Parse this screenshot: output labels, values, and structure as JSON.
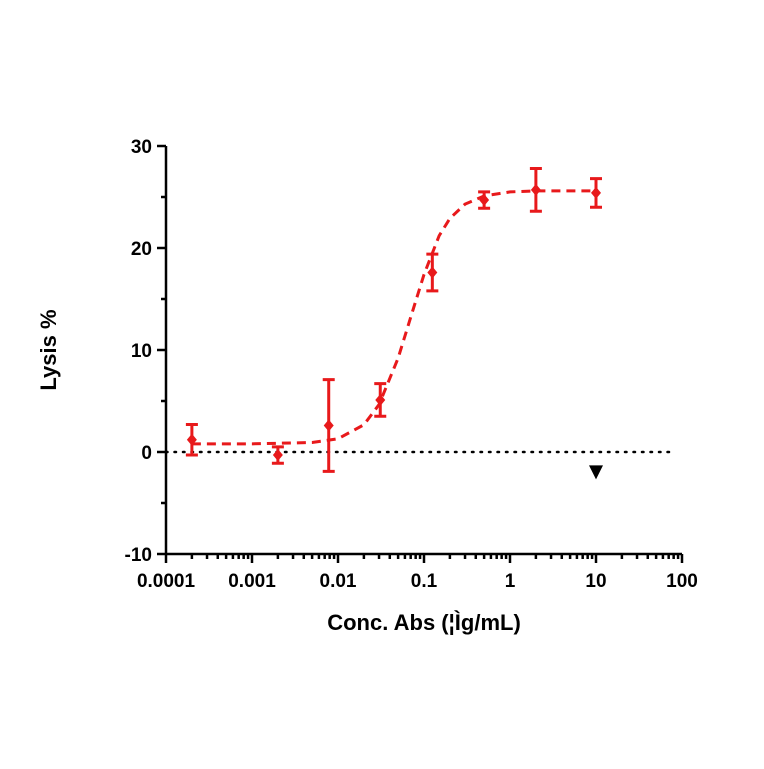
{
  "chart_data": {
    "type": "scatter",
    "xlabel": "Conc. Abs (¦Ìg/mL)",
    "ylabel": "Lysis %",
    "xscale": "log",
    "xlim": [
      0.0001,
      100
    ],
    "xticks": [
      0.0001,
      0.001,
      0.01,
      0.1,
      1,
      10,
      100
    ],
    "ylim": [
      -10,
      30
    ],
    "yticks": [
      -10,
      0,
      10,
      20,
      30
    ],
    "minor_ticks": true,
    "color": "#e8191b",
    "x": [
      0.0002,
      0.002,
      0.0078,
      0.031,
      0.125,
      0.5,
      2,
      10
    ],
    "values": [
      1.2,
      -0.3,
      2.6,
      5.1,
      17.6,
      24.7,
      25.7,
      25.4
    ],
    "errors": [
      1.5,
      0.8,
      4.5,
      1.6,
      1.8,
      0.8,
      2.1,
      1.4
    ],
    "curve": {
      "x": [
        0.0002,
        0.001,
        0.005,
        0.01,
        0.02,
        0.03,
        0.05,
        0.07,
        0.1,
        0.15,
        0.2,
        0.3,
        0.5,
        1,
        2,
        10
      ],
      "values": [
        0.8,
        0.8,
        0.93,
        1.3,
        2.67,
        4.65,
        9.2,
        13.2,
        17.4,
        21.2,
        22.9,
        24.3,
        25.1,
        25.5,
        25.6,
        25.6
      ]
    },
    "hline": 0,
    "marker": {
      "x": 10,
      "y": -2,
      "color": "#000000"
    }
  }
}
